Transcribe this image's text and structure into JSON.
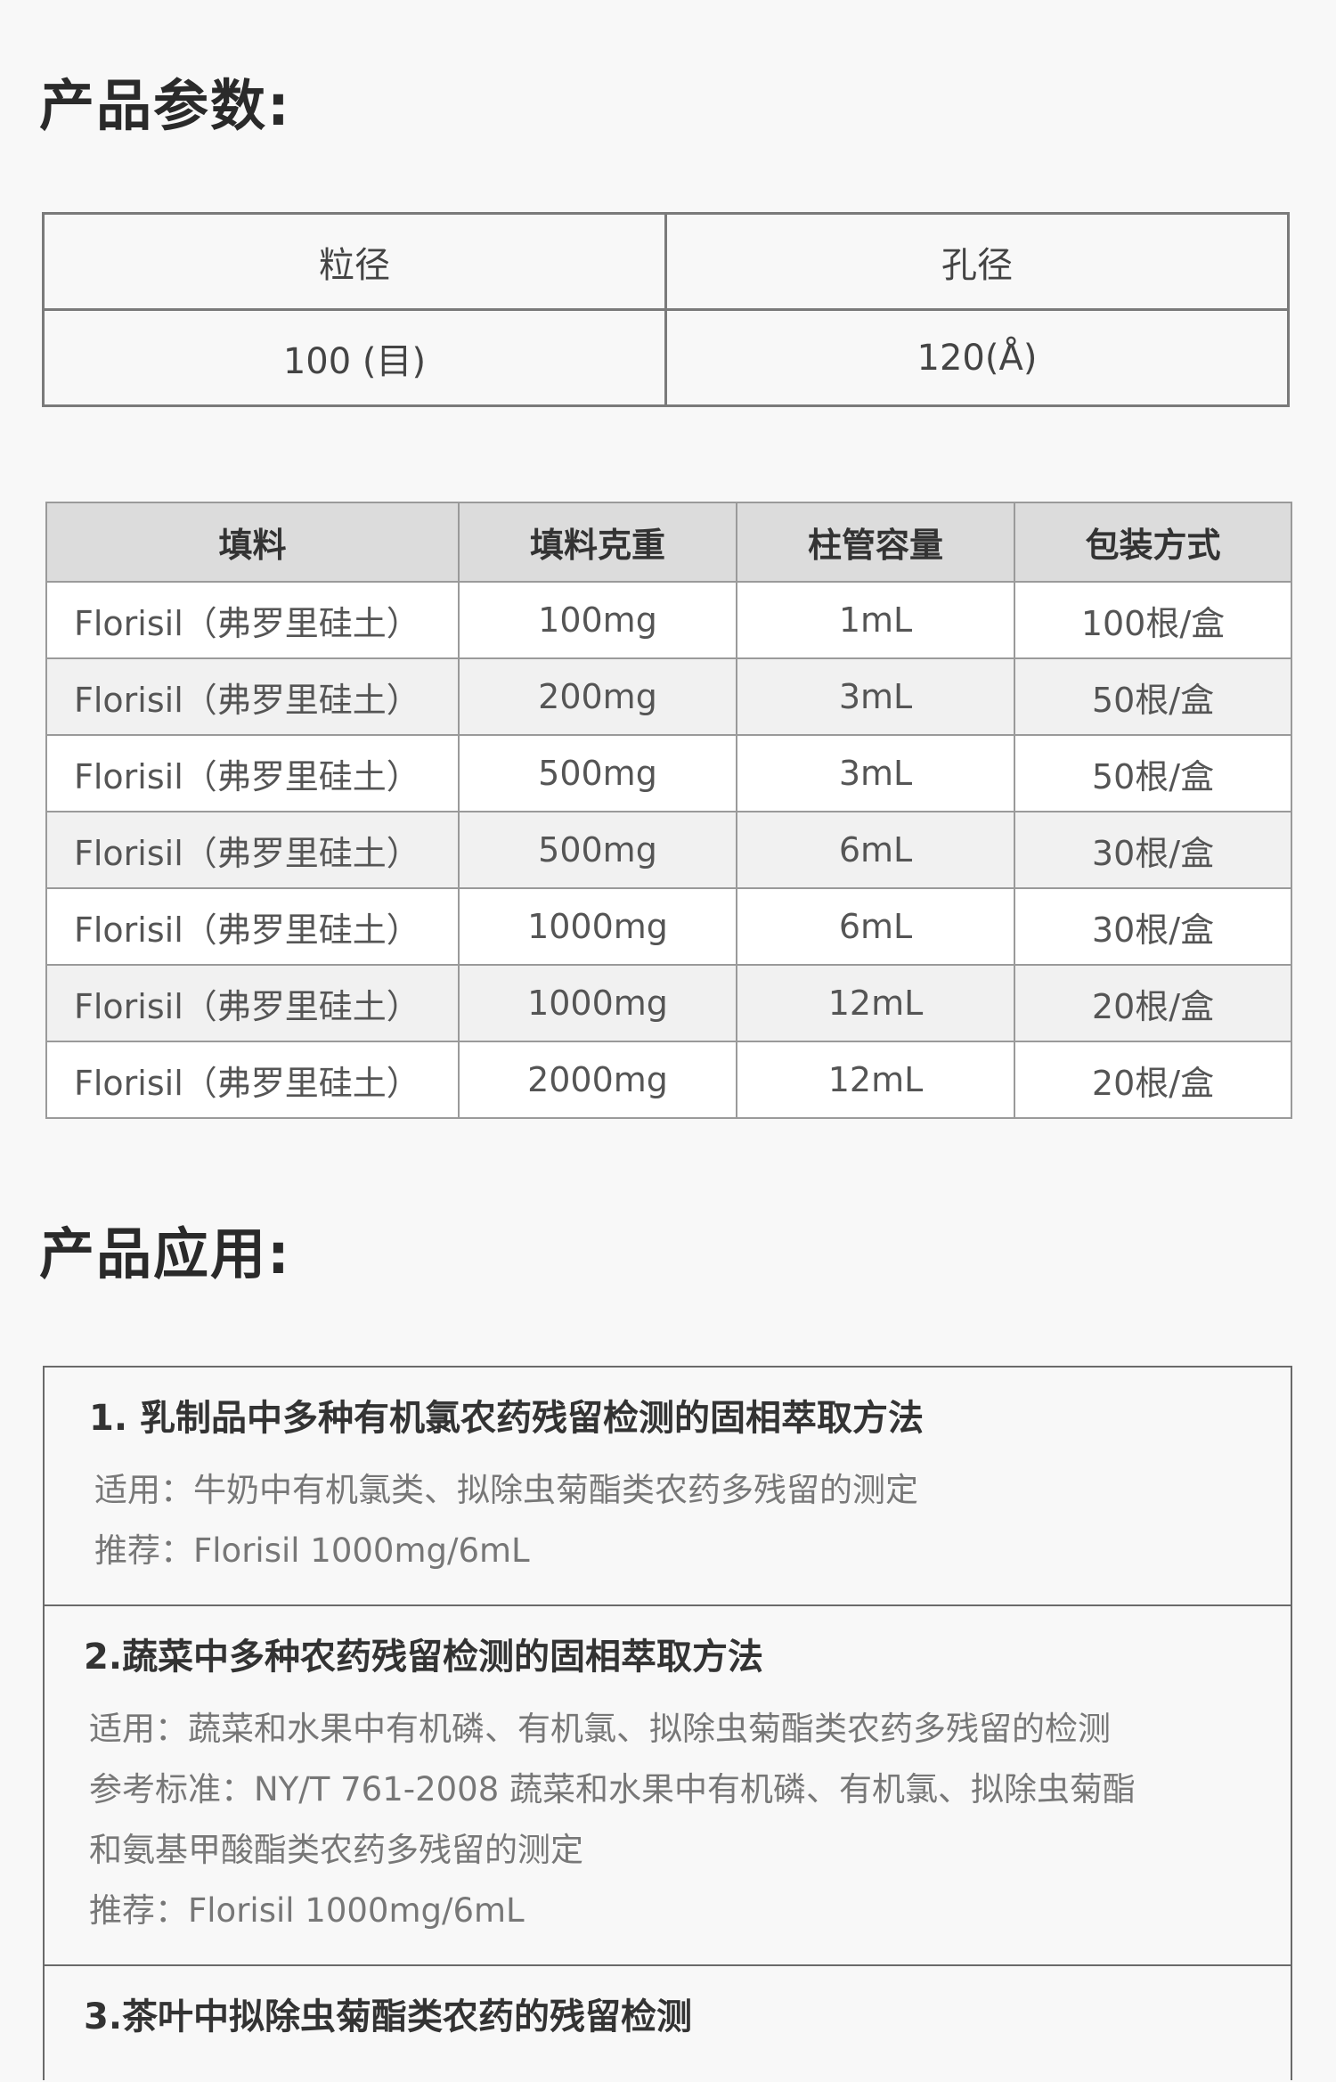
{
  "params_title": "产品参数:",
  "spec_table": {
    "headers": [
      "粒径",
      "孔径"
    ],
    "values": [
      "100 (目)",
      "120(Å)"
    ]
  },
  "product_table": {
    "headers": [
      "填料",
      "填料克重",
      "柱管容量",
      "包装方式"
    ],
    "rows": [
      [
        "Florisil（弗罗里硅土）",
        "100mg",
        "1mL",
        "100根/盒"
      ],
      [
        "Florisil（弗罗里硅土）",
        "200mg",
        "3mL",
        "50根/盒"
      ],
      [
        "Florisil（弗罗里硅土）",
        "500mg",
        "3mL",
        "50根/盒"
      ],
      [
        "Florisil（弗罗里硅土）",
        "500mg",
        "6mL",
        "30根/盒"
      ],
      [
        "Florisil（弗罗里硅土）",
        "1000mg",
        "6mL",
        "30根/盒"
      ],
      [
        "Florisil（弗罗里硅土）",
        "1000mg",
        "12mL",
        "20根/盒"
      ],
      [
        "Florisil（弗罗里硅土）",
        "2000mg",
        "12mL",
        "20根/盒"
      ]
    ]
  },
  "apps_title": "产品应用:",
  "applications": [
    {
      "title": "1. 乳制品中多种有机氯农药残留检测的固相萃取方法",
      "lines": [
        "适用：牛奶中有机氯类、拟除虫菊酯类农药多残留的测定",
        "推荐：Florisil 1000mg/6mL"
      ]
    },
    {
      "title": "2.蔬菜中多种农药残留检测的固相萃取方法",
      "lines": [
        "适用：蔬菜和水果中有机磷、有机氯、拟除虫菊酯类农药多残留的检测",
        "参考标准：NY/T 761-2008  蔬菜和水果中有机磷、有机氯、拟除虫菊酯",
        "和氨基甲酸酯类农药多残留的测定",
        "推荐：Florisil  1000mg/6mL"
      ]
    },
    {
      "title": "3.茶叶中拟除虫菊酯类农药的残留检测",
      "lines": []
    }
  ]
}
